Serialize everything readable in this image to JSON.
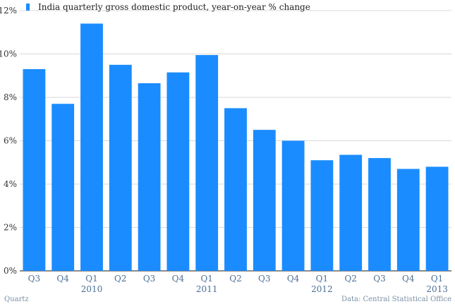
{
  "chart_data": {
    "type": "bar",
    "series": [
      {
        "name": "India quarterly gross domestic product, year-on-year % change",
        "values": [
          9.3,
          7.7,
          11.4,
          9.5,
          8.65,
          9.15,
          9.95,
          7.5,
          6.5,
          6.0,
          5.1,
          5.35,
          5.2,
          4.7,
          4.8
        ]
      }
    ],
    "categories": [
      "Q3",
      "Q4",
      "Q1",
      "Q2",
      "Q3",
      "Q4",
      "Q1",
      "Q2",
      "Q3",
      "Q4",
      "Q1",
      "Q2",
      "Q3",
      "Q4",
      "Q1"
    ],
    "year_labels": [
      {
        "text": "2010",
        "index": 2
      },
      {
        "text": "2011",
        "index": 6
      },
      {
        "text": "2012",
        "index": 10
      },
      {
        "text": "2013",
        "index": 14
      }
    ],
    "ylim": [
      0,
      12
    ],
    "yticks": [
      0,
      2,
      4,
      6,
      8,
      10,
      12
    ],
    "ytick_labels": [
      "0%",
      "2%",
      "4%",
      "6%",
      "8%",
      "10%",
      "12%"
    ],
    "grid": true,
    "legend_position": "top-left"
  },
  "footer": {
    "source_left": "Quartz",
    "source_right": "Data: Central Statistical Office"
  },
  "colors": {
    "bar": "#1a8cff",
    "grid": "#d9d9d9",
    "axis": "#444444"
  }
}
